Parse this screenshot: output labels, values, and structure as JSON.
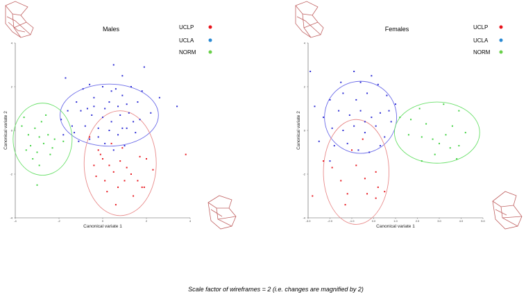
{
  "colors": {
    "UCLP": "#e8141c",
    "UCLA": "#2b2bd4",
    "NORM": "#3fd13f",
    "ellipse_UCLP": "#e88a8a",
    "ellipse_UCLA": "#6a6ae8",
    "ellipse_NORM": "#6ae06a",
    "wireframe": "#c06060"
  },
  "caption": "Scale factor of wireframes = 2   (i.e. changes are magnified by 2)",
  "chart_data": [
    {
      "type": "scatter",
      "title": "Males",
      "xlabel": "Canonical variate 1",
      "ylabel": "Canonical variate 2",
      "xlim": [
        -4,
        4
      ],
      "ylim": [
        -4,
        4
      ],
      "x_ticks": [
        "-4",
        "-2",
        "0",
        "2",
        "4"
      ],
      "y_ticks": [
        "4",
        "2",
        "0",
        "-2",
        "-4"
      ],
      "legend": [
        "UCLP",
        "UCLA",
        "NORM"
      ],
      "ellipses": [
        {
          "group": "UCLA",
          "cx": 0.3,
          "cy": 0.7,
          "rx": 2.25,
          "ry": 1.42
        },
        {
          "group": "UCLP",
          "cx": 0.8,
          "cy": -1.5,
          "rx": 1.65,
          "ry": 2.4
        },
        {
          "group": "NORM",
          "cx": -2.75,
          "cy": -0.4,
          "rx": 1.35,
          "ry": 1.65
        }
      ],
      "series": [
        {
          "name": "UCLP",
          "points": [
            [
              -0.6,
              -0.3
            ],
            [
              -0.2,
              -0.9
            ],
            [
              0,
              -1.3
            ],
            [
              0.3,
              -1.6
            ],
            [
              0.5,
              -1.9
            ],
            [
              0.8,
              -1.4
            ],
            [
              1.1,
              -1.7
            ],
            [
              1.3,
              -2.0
            ],
            [
              1.6,
              -2.3
            ],
            [
              1.9,
              -2.6
            ],
            [
              0.2,
              -2.8
            ],
            [
              0.6,
              -3.4
            ],
            [
              1.4,
              -3.0
            ],
            [
              -0.3,
              -2.1
            ],
            [
              0.9,
              -0.8
            ],
            [
              1.7,
              -1.2
            ],
            [
              2.0,
              -1.3
            ],
            [
              2.3,
              -1.8
            ],
            [
              -0.4,
              -1.6
            ],
            [
              0.4,
              -0.6
            ],
            [
              1.0,
              -2.3
            ],
            [
              0.1,
              -2.3
            ],
            [
              3.8,
              -1.1
            ],
            [
              1.8,
              -2.6
            ],
            [
              -0.1,
              -1.1
            ],
            [
              0.7,
              -2.6
            ]
          ]
        },
        {
          "name": "UCLA",
          "points": [
            [
              0.5,
              3.0
            ],
            [
              1.9,
              2.9
            ],
            [
              0.9,
              2.5
            ],
            [
              -1.7,
              2.4
            ],
            [
              -0.6,
              2.1
            ],
            [
              0,
              2.0
            ],
            [
              0.4,
              1.8
            ],
            [
              0.9,
              1.6
            ],
            [
              1.3,
              2.0
            ],
            [
              -0.9,
              1.9
            ],
            [
              -1.2,
              1.3
            ],
            [
              -0.4,
              1.5
            ],
            [
              0.3,
              1.3
            ],
            [
              0.7,
              1.1
            ],
            [
              1.1,
              1.2
            ],
            [
              1.6,
              1.3
            ],
            [
              -1.6,
              0.9
            ],
            [
              -1.0,
              0.9
            ],
            [
              -0.5,
              0.7
            ],
            [
              0,
              0.6
            ],
            [
              0.4,
              0.4
            ],
            [
              0.8,
              0.7
            ],
            [
              1.2,
              0.8
            ],
            [
              1.7,
              0.5
            ],
            [
              2.2,
              0.8
            ],
            [
              3.4,
              1.1
            ],
            [
              -1.9,
              0.5
            ],
            [
              -1.4,
              0.2
            ],
            [
              -0.8,
              0.2
            ],
            [
              -0.2,
              0.1
            ],
            [
              0.3,
              0.0
            ],
            [
              0.7,
              -0.2
            ],
            [
              1.1,
              0.1
            ],
            [
              1.5,
              -0.1
            ],
            [
              -1.8,
              -0.2
            ],
            [
              -1.1,
              -0.5
            ],
            [
              -0.6,
              -0.4
            ],
            [
              0.1,
              -0.6
            ],
            [
              0.5,
              -0.9
            ],
            [
              1.0,
              -0.7
            ],
            [
              -0.2,
              -0.3
            ],
            [
              2.6,
              1.5
            ],
            [
              1.8,
              1.8
            ],
            [
              -0.7,
              1.0
            ],
            [
              0.6,
              1.9
            ],
            [
              0.1,
              1.0
            ],
            [
              1.4,
              0.4
            ],
            [
              -1.3,
              -0.1
            ],
            [
              -0.4,
              1.1
            ],
            [
              0.9,
              0.1
            ]
          ]
        },
        {
          "name": "NORM",
          "points": [
            [
              -3.7,
              0.2
            ],
            [
              -3.4,
              -0.2
            ],
            [
              -3.1,
              0.1
            ],
            [
              -2.9,
              -0.3
            ],
            [
              -2.7,
              -0.6
            ],
            [
              -3.3,
              -0.7
            ],
            [
              -2.5,
              -0.2
            ],
            [
              -2.8,
              0.4
            ],
            [
              -3.0,
              -1.0
            ],
            [
              -3.2,
              -1.3
            ],
            [
              -2.3,
              -0.8
            ],
            [
              -2.9,
              -1.6
            ],
            [
              -2.2,
              -0.4
            ],
            [
              -3.5,
              -0.9
            ],
            [
              -3.0,
              -2.5
            ],
            [
              -1.8,
              -0.5
            ],
            [
              -2.4,
              -1.1
            ],
            [
              -3.6,
              0.6
            ],
            [
              -2.6,
              0.7
            ]
          ]
        }
      ]
    },
    {
      "type": "scatter",
      "title": "Females",
      "xlabel": "Canonical variate 1",
      "ylabel": "Canonical variate 2",
      "xlim": [
        -3,
        5
      ],
      "ylim": [
        -4,
        4
      ],
      "x_ticks": [
        "-3.0",
        "-2.0",
        "-1.0",
        "0.0",
        "1.0",
        "2.0",
        "3.0",
        "4.0",
        "5.0"
      ],
      "y_ticks": [
        "4",
        "2",
        "0",
        "-2",
        "-4"
      ],
      "legend": [
        "UCLP",
        "UCLA",
        "NORM"
      ],
      "ellipses": [
        {
          "group": "UCLA",
          "cx": -0.6,
          "cy": 0.6,
          "rx": 1.65,
          "ry": 1.65
        },
        {
          "group": "UCLP",
          "cx": -0.8,
          "cy": -1.9,
          "rx": 1.5,
          "ry": 2.4
        },
        {
          "group": "NORM",
          "cx": 2.9,
          "cy": -0.1,
          "rx": 1.95,
          "ry": 1.4
        }
      ],
      "series": [
        {
          "name": "UCLP",
          "points": [
            [
              -2.3,
              -1.4
            ],
            [
              -1.9,
              -1.7
            ],
            [
              -1.5,
              -2.3
            ],
            [
              -1.2,
              -2.9
            ],
            [
              -0.8,
              -1.6
            ],
            [
              -0.4,
              -2.2
            ],
            [
              0.2,
              -2.6
            ],
            [
              0.5,
              -2.8
            ],
            [
              -0.3,
              -2.9
            ],
            [
              0.1,
              -1.9
            ],
            [
              -1.0,
              -0.9
            ],
            [
              -2.8,
              -3.0
            ],
            [
              -1.3,
              -3.4
            ],
            [
              0.1,
              -3.1
            ],
            [
              -0.5,
              -0.4
            ]
          ]
        },
        {
          "name": "UCLA",
          "points": [
            [
              -2.9,
              2.7
            ],
            [
              -0.9,
              2.7
            ],
            [
              -0.6,
              2.2
            ],
            [
              -0.1,
              2.5
            ],
            [
              -1.4,
              1.7
            ],
            [
              -0.8,
              1.4
            ],
            [
              -0.3,
              1.7
            ],
            [
              0.2,
              2.1
            ],
            [
              0.6,
              1.6
            ],
            [
              -2.0,
              1.4
            ],
            [
              -1.6,
              0.9
            ],
            [
              -1.1,
              0.7
            ],
            [
              -0.6,
              0.9
            ],
            [
              -0.1,
              0.6
            ],
            [
              0.3,
              0.8
            ],
            [
              0.8,
              0.4
            ],
            [
              -2.3,
              0.6
            ],
            [
              -1.9,
              0.1
            ],
            [
              -1.4,
              0.0
            ],
            [
              -0.9,
              0.2
            ],
            [
              -0.4,
              -0.1
            ],
            [
              0.1,
              0.2
            ],
            [
              0.5,
              -0.3
            ],
            [
              -2.5,
              -0.5
            ],
            [
              -1.8,
              -0.7
            ],
            [
              -1.2,
              -0.6
            ],
            [
              -0.7,
              -0.9
            ],
            [
              -0.2,
              -1.0
            ],
            [
              0.3,
              -0.7
            ],
            [
              -2.0,
              -1.4
            ],
            [
              1.0,
              1.2
            ],
            [
              -1.5,
              2.2
            ],
            [
              -0.4,
              0.4
            ],
            [
              0.7,
              0.9
            ],
            [
              -2.7,
              1.1
            ]
          ]
        },
        {
          "name": "NORM",
          "points": [
            [
              1.2,
              0.6
            ],
            [
              1.7,
              0.5
            ],
            [
              2.1,
              1.0
            ],
            [
              2.4,
              0.3
            ],
            [
              2.2,
              -0.3
            ],
            [
              2.7,
              -0.4
            ],
            [
              3.0,
              -0.6
            ],
            [
              3.3,
              -0.2
            ],
            [
              3.6,
              0.2
            ],
            [
              3.9,
              0.9
            ],
            [
              4.2,
              -0.1
            ],
            [
              3.5,
              -0.8
            ],
            [
              2.8,
              -1.1
            ],
            [
              2.2,
              -1.4
            ],
            [
              3.8,
              -1.3
            ],
            [
              1.6,
              -0.2
            ],
            [
              3.2,
              1.2
            ],
            [
              3.9,
              -0.7
            ]
          ]
        }
      ]
    }
  ]
}
